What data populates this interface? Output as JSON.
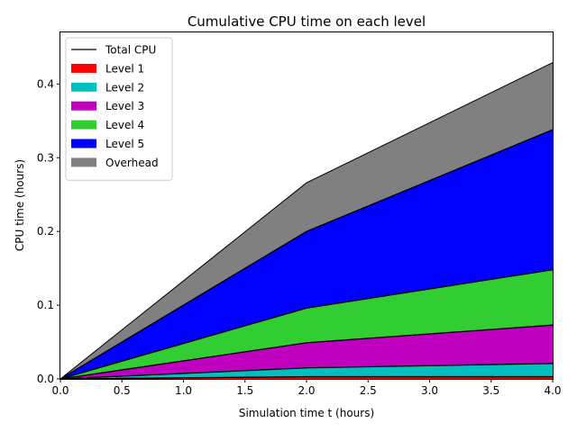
{
  "chart_data": {
    "type": "area",
    "stacked": true,
    "title": "Cumulative CPU time on each level",
    "xlabel": "Simulation time t (hours)",
    "ylabel": "CPU time (hours)",
    "xlim": [
      0,
      4
    ],
    "ylim": [
      0,
      0.47
    ],
    "xticks": [
      "0.0",
      "0.5",
      "1.0",
      "1.5",
      "2.0",
      "2.5",
      "3.0",
      "3.5",
      "4.0"
    ],
    "yticks": [
      "0.0",
      "0.1",
      "0.2",
      "0.3",
      "0.4"
    ],
    "grid": false,
    "legend_position": "top-left",
    "x": [
      0,
      2,
      4
    ],
    "total": {
      "name": "Total CPU",
      "color": "#000000",
      "values": [
        0,
        0.266,
        0.429
      ]
    },
    "series": [
      {
        "name": "Level 1",
        "color": "#ff0000",
        "values": [
          0,
          0.003,
          0.003
        ]
      },
      {
        "name": "Level 2",
        "color": "#00bfbf",
        "values": [
          0,
          0.012,
          0.018
        ]
      },
      {
        "name": "Level 3",
        "color": "#bf00bf",
        "values": [
          0,
          0.034,
          0.052
        ]
      },
      {
        "name": "Level 4",
        "color": "#32cd32",
        "values": [
          0,
          0.047,
          0.075
        ]
      },
      {
        "name": "Level 5",
        "color": "#0000ff",
        "values": [
          0,
          0.104,
          0.19
        ]
      },
      {
        "name": "Overhead",
        "color": "#808080",
        "values": [
          0,
          0.066,
          0.091
        ]
      }
    ]
  }
}
